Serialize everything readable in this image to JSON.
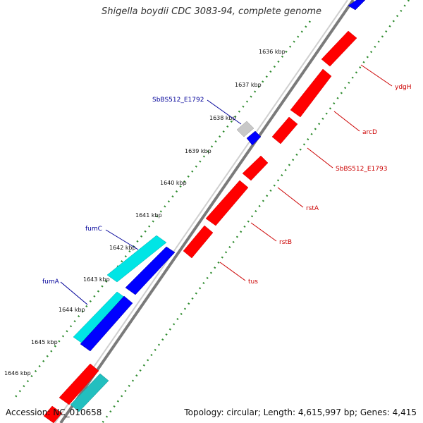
{
  "title": "Shigella boydii CDC 3083-94, complete genome",
  "footer": {
    "accession": "Accession: NC_010658",
    "summary": "Topology: circular; Length: 4,615,997 bp; Genes: 4,415"
  },
  "colors": {
    "backbone": "#808080",
    "tick": "#2e8b2e",
    "forward_gene": "#ff0000",
    "reverse_gene": "#0000ff",
    "cyan_gene": "#00e5e5",
    "gray_gene": "#c8c8c8",
    "forward_label": "#cc0000",
    "reverse_label": "#000099"
  },
  "ticks": [
    "1636 kbp",
    "1637 kbp",
    "1638 kbp",
    "1639 kbp",
    "1640 kbp",
    "1641 kbp",
    "1642 kbp",
    "1643 kbp",
    "1644 kbp",
    "1645 kbp",
    "1646 kbp"
  ],
  "forward_genes": [
    "ydgH",
    "arcD",
    "SbBS512_E1793",
    "rstA",
    "rstB",
    "tus"
  ],
  "reverse_genes": [
    "SbBS512_E1792",
    "fumC",
    "fumA"
  ]
}
